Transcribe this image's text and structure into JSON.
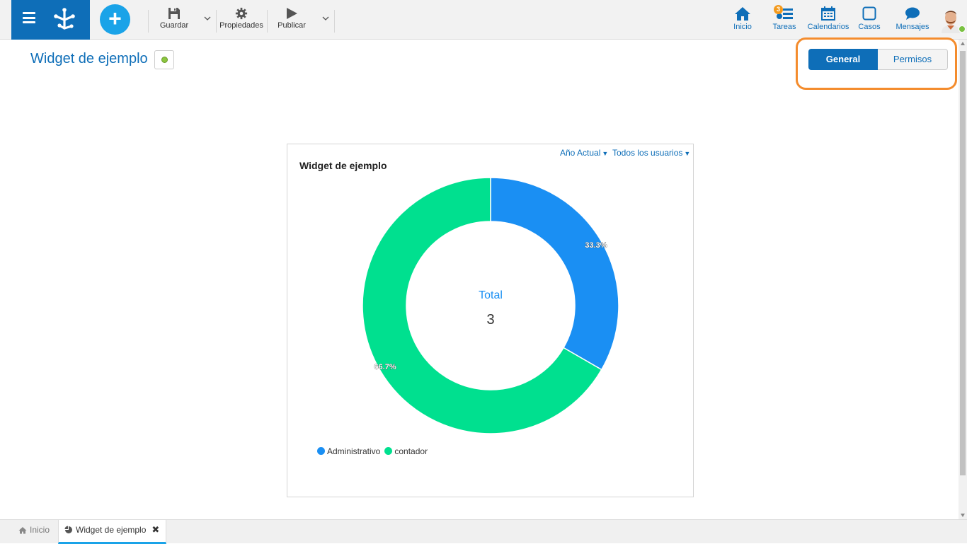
{
  "toolbar": {
    "save_label": "Guardar",
    "properties_label": "Propiedades",
    "publish_label": "Publicar"
  },
  "nav": {
    "home_label": "Inicio",
    "tasks_label": "Tareas",
    "tasks_badge": "3",
    "calendars_label": "Calendarios",
    "cases_label": "Casos",
    "messages_label": "Mensajes"
  },
  "page": {
    "title": "Widget de ejemplo",
    "tabs": [
      {
        "label": "General",
        "active": true
      },
      {
        "label": "Permisos",
        "active": false
      }
    ]
  },
  "widget": {
    "title": "Widget de ejemplo",
    "filter_period": "Año Actual",
    "filter_users": "Todos los usuarios",
    "center_label": "Total",
    "center_value": "3"
  },
  "chart_data": {
    "type": "pie",
    "donut": true,
    "categories": [
      "Administrativo",
      "contador"
    ],
    "values": [
      1,
      2
    ],
    "percent_labels": [
      "33.3%",
      "66.7%"
    ],
    "colors": [
      "#1a8ff3",
      "#00e08f"
    ],
    "legend": "bottom-left"
  },
  "bottom_tabs": [
    {
      "label": "Inicio"
    },
    {
      "label": "Widget de ejemplo"
    }
  ],
  "colors": {
    "brand": "#0e6eb8",
    "accent": "#1aa3e8",
    "highlight": "#f48c2d",
    "status_ok": "#8cc63f"
  }
}
